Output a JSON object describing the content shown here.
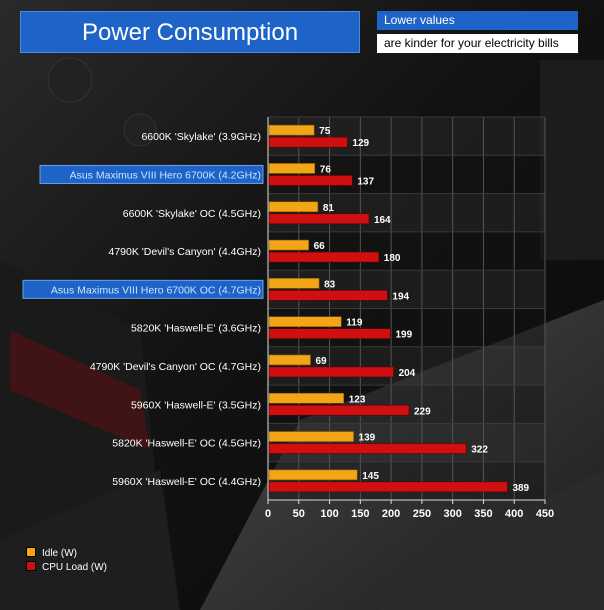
{
  "header": {
    "title": "Power Consumption",
    "note_line1": "Lower values",
    "note_line2": "are kinder for your electricity bills"
  },
  "colors": {
    "idle": "#f2a516",
    "load": "#d01010",
    "highlight": "#1e64c8"
  },
  "chart_data": {
    "type": "bar",
    "orientation": "horizontal",
    "categories": [
      "6600K 'Skylake' (3.9GHz)",
      "Asus Maximus VIII Hero 6700K (4.2GHz)",
      "6600K 'Skylake' OC (4.5GHz)",
      "4790K 'Devil's Canyon' (4.4GHz)",
      "Asus Maximus VIII Hero 6700K OC (4.7GHz)",
      "5820K 'Haswell-E' (3.6GHz)",
      "4790K 'Devil's Canyon' OC (4.7GHz)",
      "5960X 'Haswell-E' (3.5GHz)",
      "5820K 'Haswell-E' OC (4.5GHz)",
      "5960X 'Haswell-E' OC (4.4GHz)"
    ],
    "highlighted": [
      false,
      true,
      false,
      false,
      true,
      false,
      false,
      false,
      false,
      false
    ],
    "series": [
      {
        "name": "Idle (W)",
        "values": [
          75,
          76,
          81,
          66,
          83,
          119,
          69,
          123,
          139,
          145
        ]
      },
      {
        "name": "CPU Load (W)",
        "values": [
          129,
          137,
          164,
          180,
          194,
          199,
          204,
          229,
          322,
          389
        ]
      }
    ],
    "xlim": [
      0,
      450
    ],
    "xticks": [
      0,
      50,
      100,
      150,
      200,
      250,
      300,
      350,
      400,
      450
    ],
    "legend_position": "bottom-left",
    "grid": true
  }
}
